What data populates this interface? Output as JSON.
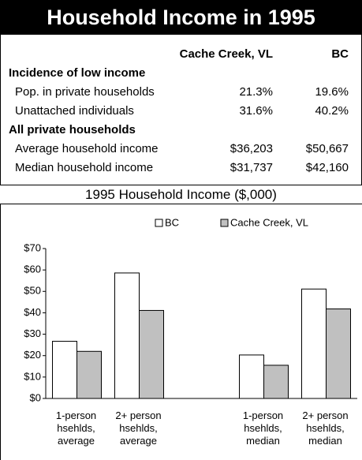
{
  "title": "Household Income in 1995",
  "table": {
    "columns": [
      "Cache Creek, VL",
      "BC"
    ],
    "sections": [
      {
        "heading": "Incidence of low income",
        "rows": [
          [
            "Pop. in private households",
            "21.3%",
            "19.6%"
          ],
          [
            "Unattached individuals",
            "31.6%",
            "40.2%"
          ]
        ]
      },
      {
        "heading": "All private households",
        "rows": [
          [
            "Average household income",
            "$36,203",
            "$50,667"
          ],
          [
            "Median household income",
            "$31,737",
            "$42,160"
          ]
        ]
      }
    ]
  },
  "chart_data": {
    "type": "bar",
    "title": "1995 Household Income ($,000)",
    "categories": [
      "1-person hsehlds, average",
      "2+ person hsehlds, average",
      null,
      "1-person hsehlds, median",
      "2+ person hsehlds, median"
    ],
    "series": [
      {
        "name": "BC",
        "color": "#ffffff",
        "values": [
          26.7,
          58.6,
          null,
          20.3,
          51.1
        ]
      },
      {
        "name": "Cache Creek, VL",
        "color": "#c0c0c0",
        "values": [
          22.0,
          41.1,
          null,
          15.5,
          41.8
        ]
      }
    ],
    "ylim": [
      0,
      70
    ],
    "yticks": [
      {
        "value": 0,
        "label": "$0"
      },
      {
        "value": 10,
        "label": "$10"
      },
      {
        "value": 20,
        "label": "$20"
      },
      {
        "value": 30,
        "label": "$30"
      },
      {
        "value": 40,
        "label": "$40"
      },
      {
        "value": 50,
        "label": "$50"
      },
      {
        "value": 60,
        "label": "$60"
      },
      {
        "value": 70,
        "label": "$70"
      }
    ],
    "grid": false,
    "legend": "top"
  }
}
